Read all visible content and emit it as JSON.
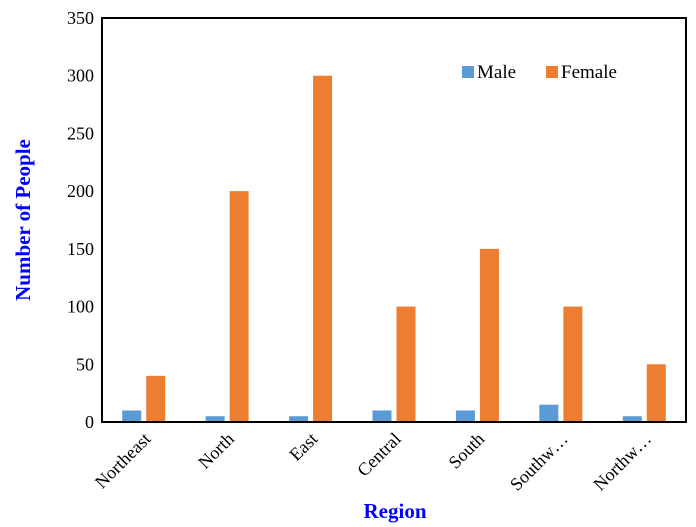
{
  "chart_data": {
    "type": "bar",
    "categories": [
      "Northeast",
      "North",
      "East",
      "Central",
      "South",
      "Southw…",
      "Northw…"
    ],
    "series": [
      {
        "name": "Male",
        "values": [
          10,
          5,
          5,
          10,
          10,
          15,
          5
        ],
        "color": "#5B9BD5"
      },
      {
        "name": "Female",
        "values": [
          40,
          200,
          300,
          100,
          150,
          100,
          50
        ],
        "color": "#ED7D31"
      }
    ],
    "xlabel": "Region",
    "ylabel": "Number of People",
    "ylim": [
      0,
      350
    ],
    "yticks": [
      0,
      50,
      100,
      150,
      200,
      250,
      300,
      350
    ],
    "axis_title_color": "#0000FF",
    "grid": false,
    "legend_position": "top-right"
  }
}
